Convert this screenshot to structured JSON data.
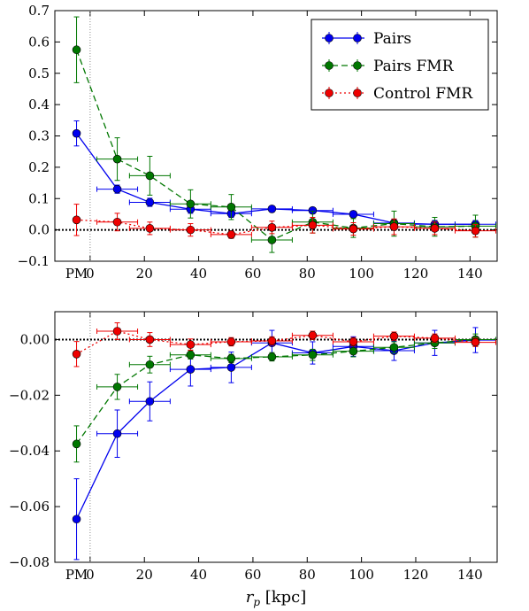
{
  "chart_data": [
    {
      "type": "line",
      "panel": "top",
      "x": [
        "PM",
        10,
        22,
        37,
        52,
        67,
        82,
        97,
        112,
        127,
        142
      ],
      "x_tick_labels": [
        "PM",
        "0",
        "20",
        "40",
        "60",
        "80",
        "100",
        "120",
        "140"
      ],
      "y_tick_labels": [
        "−0.1",
        "0.0",
        "0.1",
        "0.2",
        "0.3",
        "0.4",
        "0.5",
        "0.6",
        "0.7"
      ],
      "ylim": [
        -0.1,
        0.7
      ],
      "xlim": [
        -13,
        150
      ],
      "reference_line_y": 0,
      "legend": {
        "placement": "top-right",
        "entries": [
          "Pairs",
          "Pairs FMR",
          "Control FMR"
        ]
      },
      "series": [
        {
          "name": "Pairs",
          "color": "#0000ee",
          "linestyle": "solid",
          "values": [
            0.308,
            0.13,
            0.088,
            0.066,
            0.052,
            0.067,
            0.062,
            0.05,
            0.022,
            0.018,
            0.018
          ],
          "yerr": [
            0.04,
            0.013,
            0.013,
            0.013,
            0.012,
            0.008,
            0.008,
            0.01,
            0.012,
            0.012,
            0.012
          ]
        },
        {
          "name": "Pairs FMR",
          "color": "#007700",
          "linestyle": "dashed",
          "values": [
            0.575,
            0.226,
            0.173,
            0.083,
            0.073,
            -0.032,
            0.025,
            0.006,
            0.02,
            0.01,
            0.012
          ],
          "yerr": [
            0.105,
            0.068,
            0.062,
            0.045,
            0.04,
            0.04,
            0.035,
            0.03,
            0.04,
            0.03,
            0.035
          ]
        },
        {
          "name": "Control FMR",
          "color": "#ee0000",
          "linestyle": "dotted",
          "values": [
            0.032,
            0.025,
            0.005,
            0.0,
            -0.015,
            0.008,
            0.015,
            0.003,
            0.01,
            0.005,
            -0.003
          ],
          "yerr": [
            0.05,
            0.028,
            0.02,
            0.02,
            0.012,
            0.02,
            0.025,
            0.02,
            0.025,
            0.02,
            0.02
          ]
        }
      ]
    },
    {
      "type": "line",
      "panel": "bottom",
      "x": [
        "PM",
        10,
        22,
        37,
        52,
        67,
        82,
        97,
        112,
        127,
        142
      ],
      "x_tick_labels": [
        "PM",
        "0",
        "20",
        "40",
        "60",
        "80",
        "100",
        "120",
        "140"
      ],
      "y_tick_labels": [
        "−0.08",
        "−0.06",
        "−0.04",
        "−0.02",
        "0.00"
      ],
      "ylim": [
        -0.08,
        0.01
      ],
      "xlim": [
        -13,
        150
      ],
      "xlabel": "r_p [kpc]",
      "reference_line_y": 0,
      "series": [
        {
          "name": "Pairs",
          "color": "#0000ee",
          "linestyle": "solid",
          "values": [
            -0.0645,
            -0.0338,
            -0.0222,
            -0.0107,
            -0.01,
            -0.0012,
            -0.0048,
            -0.0025,
            -0.004,
            -0.0012,
            -0.0002
          ],
          "yerr": [
            0.0145,
            0.0085,
            0.007,
            0.006,
            0.0055,
            0.0045,
            0.004,
            0.0035,
            0.0035,
            0.0045,
            0.0045
          ]
        },
        {
          "name": "Pairs FMR",
          "color": "#007700",
          "linestyle": "dashed",
          "values": [
            -0.0375,
            -0.017,
            -0.009,
            -0.0055,
            -0.0068,
            -0.0062,
            -0.0055,
            -0.0042,
            -0.0028,
            -0.0012,
            0.0
          ],
          "yerr": [
            0.0065,
            0.0045,
            0.003,
            0.0015,
            0.0015,
            0.0015,
            0.002,
            0.002,
            0.002,
            0.002,
            0.002
          ]
        },
        {
          "name": "Control FMR",
          "color": "#ee0000",
          "linestyle": "dotted",
          "values": [
            -0.0052,
            0.003,
            0.0,
            -0.0018,
            -0.0008,
            -0.0005,
            0.0015,
            -0.0008,
            0.0012,
            0.0005,
            -0.001
          ],
          "yerr": [
            0.0045,
            0.003,
            0.0025,
            0.002,
            0.0015,
            0.0015,
            0.0015,
            0.0015,
            0.0015,
            0.0015,
            0.0015
          ]
        }
      ]
    }
  ]
}
